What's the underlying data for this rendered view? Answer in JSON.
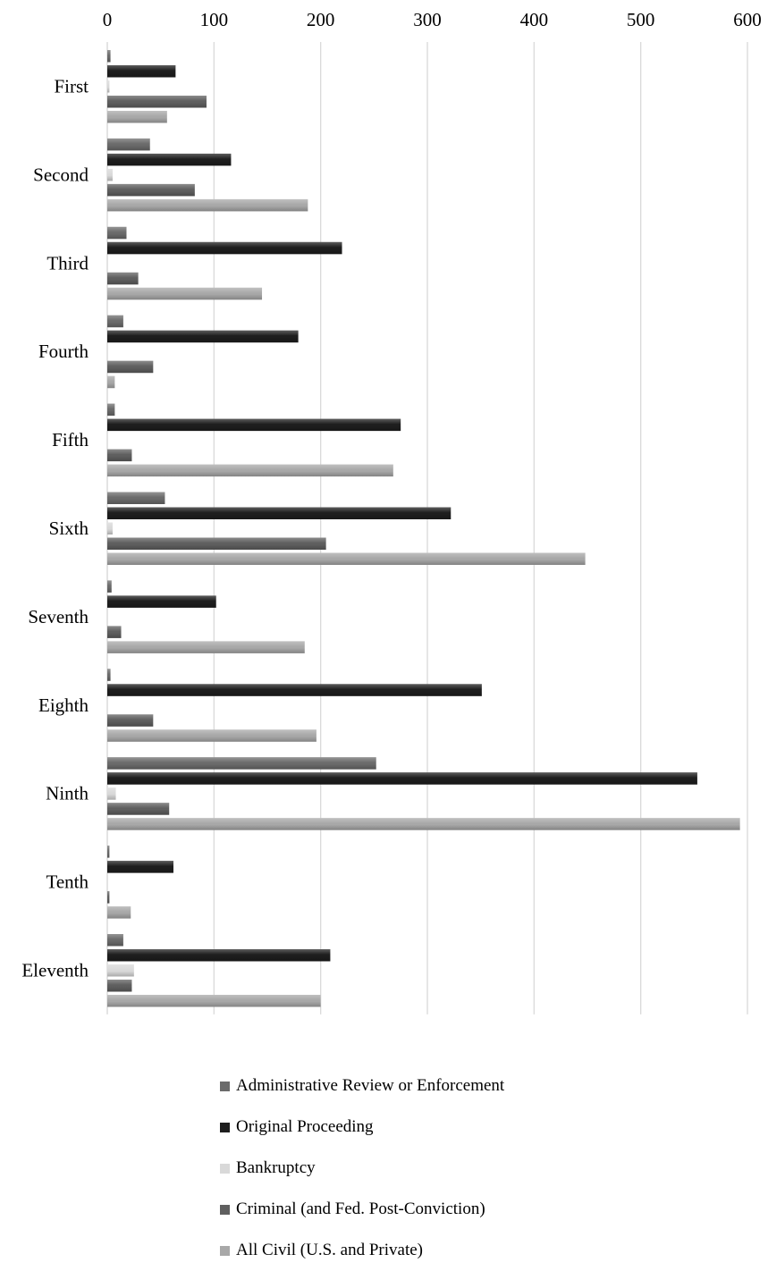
{
  "chart_data": {
    "type": "bar",
    "orientation": "horizontal",
    "title": "",
    "xlabel": "",
    "ylabel": "",
    "xlim": [
      0,
      600
    ],
    "xticks": [
      0,
      100,
      200,
      300,
      400,
      500,
      600
    ],
    "x_axis_position": "top",
    "grid": "vertical",
    "legend_position": "bottom",
    "categories": [
      "First",
      "Second",
      "Third",
      "Fourth",
      "Fifth",
      "Sixth",
      "Seventh",
      "Eighth",
      "Ninth",
      "Tenth",
      "Eleventh"
    ],
    "series": [
      {
        "name": "Administrative Review or Enforcement",
        "color": "#6b6b6b",
        "values": [
          3,
          40,
          18,
          15,
          7,
          54,
          4,
          3,
          252,
          2,
          15
        ]
      },
      {
        "name": "Original Proceeding",
        "color": "#1e1e1e",
        "values": [
          64,
          116,
          220,
          179,
          275,
          322,
          102,
          351,
          553,
          62,
          209
        ]
      },
      {
        "name": "Bankruptcy",
        "color": "#d9d9d9",
        "values": [
          2,
          5,
          0,
          0,
          0,
          5,
          0,
          0,
          8,
          0,
          25
        ]
      },
      {
        "name": "Criminal (and Fed. Post-Conviction)",
        "color": "#5f5f5f",
        "values": [
          93,
          82,
          29,
          43,
          23,
          205,
          13,
          43,
          58,
          2,
          23
        ]
      },
      {
        "name": "All Civil (U.S. and Private)",
        "color": "#a8a8a8",
        "values": [
          56,
          188,
          145,
          7,
          268,
          448,
          185,
          196,
          593,
          22,
          200
        ]
      }
    ]
  }
}
